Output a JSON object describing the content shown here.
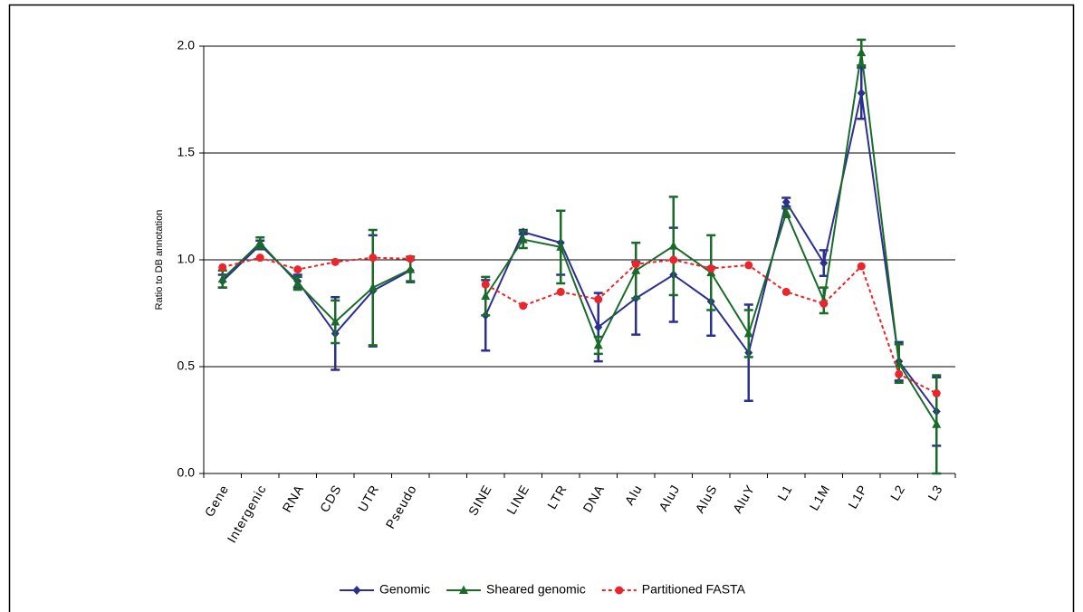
{
  "chart_data": {
    "type": "line",
    "ylabel": "Ratio to DB annotation",
    "categories": [
      "Gene",
      "Intergenic",
      "RNA",
      "CDS",
      "UTR",
      "Pseudo",
      null,
      "SINE",
      "LINE",
      "LTR",
      "DNA",
      "Alu",
      "AluJ",
      "AluS",
      "AluY",
      "L1",
      "L1M",
      "L1P",
      "L2",
      "L3"
    ],
    "series": [
      {
        "name": "Genomic",
        "color": "#2b2f8f",
        "marker": "diamond",
        "dashed": false,
        "values": [
          0.9,
          1.07,
          0.9,
          0.655,
          0.855,
          0.95,
          null,
          0.74,
          1.13,
          1.08,
          0.685,
          0.82,
          0.93,
          0.805,
          0.565,
          1.27,
          0.985,
          1.78,
          0.525,
          0.29
        ],
        "errors": [
          0.03,
          0.02,
          0.03,
          0.17,
          0.26,
          0.05,
          null,
          0.165,
          0.01,
          0.15,
          0.16,
          0.17,
          0.22,
          0.16,
          0.225,
          0.02,
          0.06,
          0.12,
          0.09,
          0.16
        ]
      },
      {
        "name": "Sheared genomic",
        "color": "#1a6b2a",
        "marker": "triangle",
        "dashed": false,
        "values": [
          0.91,
          1.08,
          0.89,
          0.71,
          0.87,
          0.955,
          null,
          0.83,
          1.095,
          1.06,
          0.6,
          0.95,
          1.065,
          0.94,
          0.655,
          1.22,
          0.81,
          1.97,
          0.515,
          0.23
        ],
        "errors": [
          0.04,
          0.025,
          0.03,
          0.1,
          0.27,
          0.06,
          null,
          0.09,
          0.04,
          0.17,
          0.04,
          0.13,
          0.23,
          0.175,
          0.11,
          0.02,
          0.06,
          0.06,
          0.09,
          0.23
        ]
      },
      {
        "name": "Partitioned FASTA",
        "color": "#e8262b",
        "marker": "circle",
        "dashed": true,
        "values": [
          0.965,
          1.01,
          0.955,
          0.99,
          1.01,
          1.005,
          null,
          0.885,
          0.785,
          0.85,
          0.815,
          0.98,
          1.0,
          0.96,
          0.975,
          0.85,
          0.795,
          0.97,
          0.465,
          0.375
        ]
      }
    ],
    "ylim": [
      0,
      2.0
    ],
    "yticks": [
      {
        "value": 0,
        "label": "0.0"
      },
      0.5,
      {
        "value": 1,
        "label": "1.0"
      },
      1.5,
      {
        "value": 2,
        "label": "2.0"
      }
    ],
    "grid": true,
    "legend": "bottom"
  }
}
